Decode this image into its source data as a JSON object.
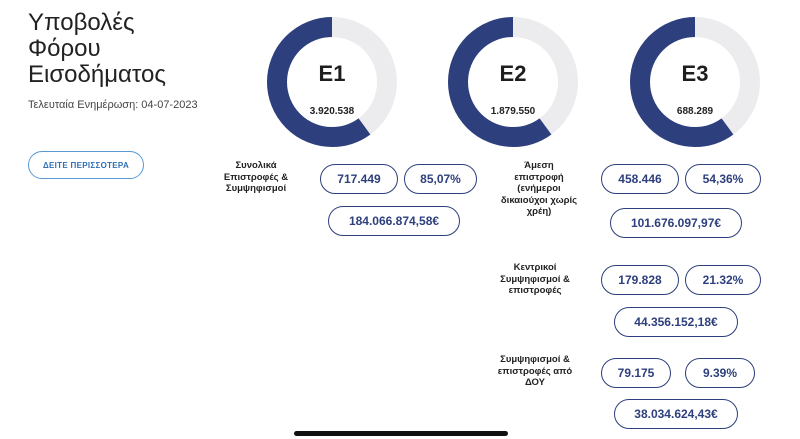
{
  "header": {
    "title_lines": [
      "Υποβολές",
      "Φόρου",
      "Εισοδήματος"
    ],
    "last_update": "Τελευταία Ενημέρωση: 04-07-2023",
    "more_button": "ΔΕΙΤΕ ΠΕΡΙΣΣΟΤΕΡΑ"
  },
  "colors": {
    "accent": "#2d3f7c",
    "track": "#ececef",
    "button": "#5b9bd5"
  },
  "gauges": [
    {
      "name": "Ε1",
      "value": "3.920.538",
      "fill_fraction": 0.6
    },
    {
      "name": "Ε2",
      "value": "1.879.550",
      "fill_fraction": 0.6
    },
    {
      "name": "Ε3",
      "value": "688.289",
      "fill_fraction": 0.6
    }
  ],
  "totals": {
    "label": "Συνολικά Επιστροφές & Συμψηφισμοί",
    "count": "717.449",
    "percent": "85,07%",
    "amount": "184.066.874,58€"
  },
  "direct_refund": {
    "label": "Άμεση επιστροφή (ενήμεροι δικαιούχοι χωρίς χρέη)",
    "count": "458.446",
    "percent": "54,36%",
    "amount": "101.676.097,97€"
  },
  "central_offsets": {
    "label": "Κεντρικοί Συμψηφισμοί & επιστροφές",
    "count": "179.828",
    "percent": "21.32%",
    "amount": "44.356.152,18€"
  },
  "doy_offsets": {
    "label": "Συμψηφισμοί & επιστροφές από ΔΟΥ",
    "count": "79.175",
    "percent": "9.39%",
    "amount": "38.034.624,43€"
  }
}
